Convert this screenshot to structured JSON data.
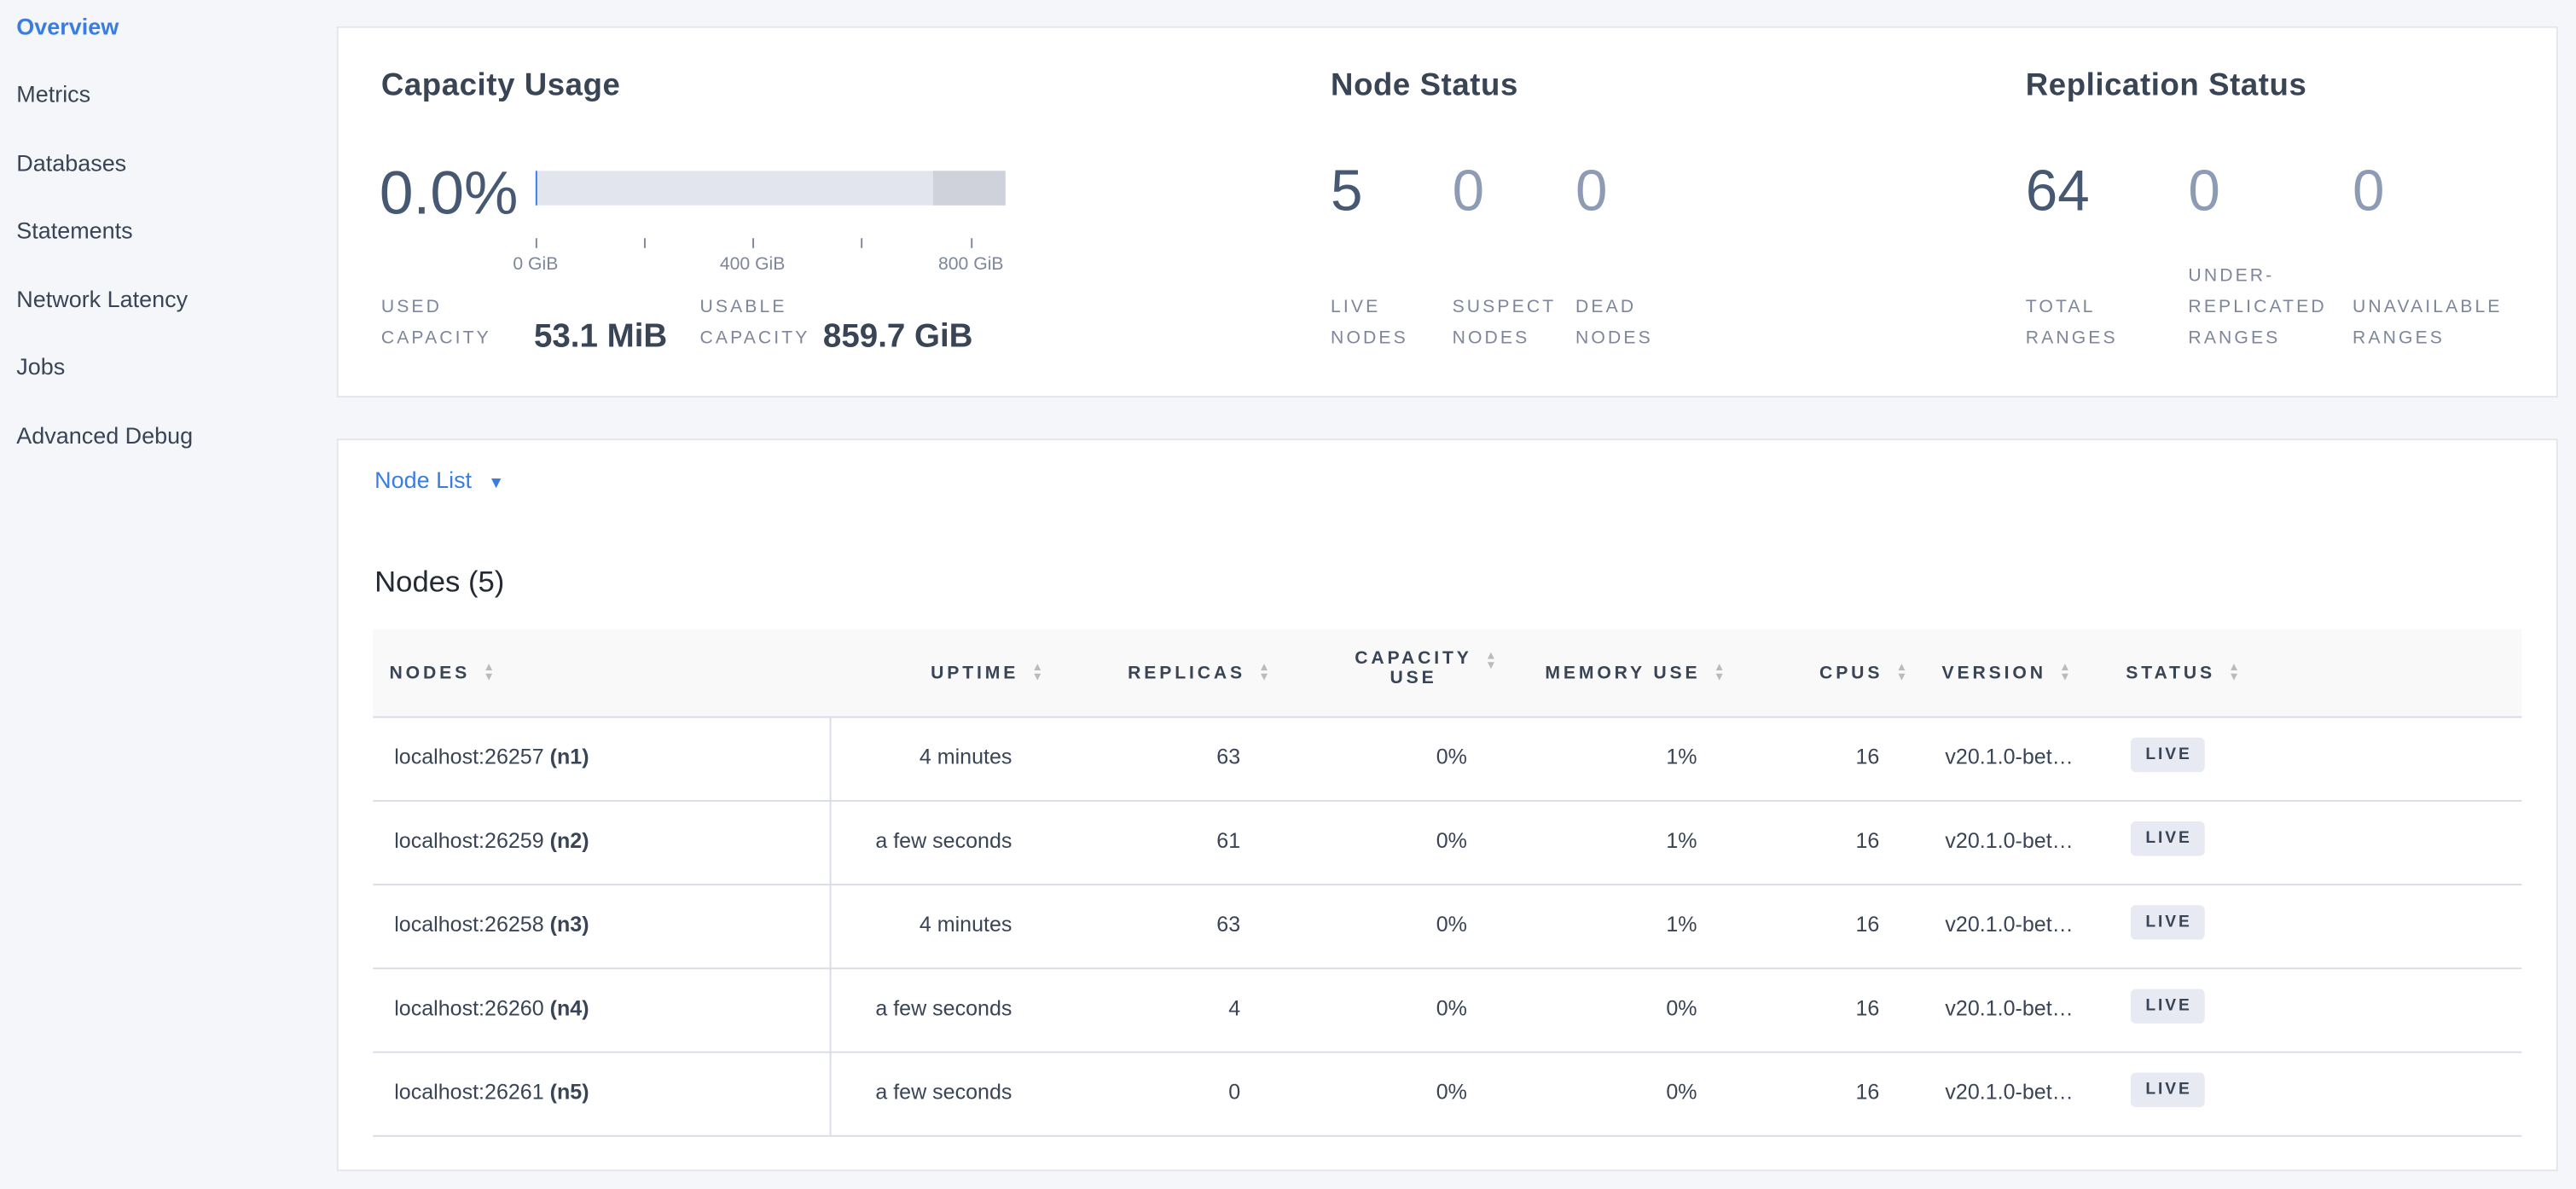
{
  "sidebar": {
    "items": [
      {
        "label": "Overview",
        "active": true
      },
      {
        "label": "Metrics"
      },
      {
        "label": "Databases"
      },
      {
        "label": "Statements"
      },
      {
        "label": "Network Latency"
      },
      {
        "label": "Jobs"
      },
      {
        "label": "Advanced Debug"
      }
    ]
  },
  "capacity": {
    "title": "Capacity Usage",
    "percent": "0.0%",
    "used_fraction": 0.0,
    "axis": {
      "ticks": [
        "0 GiB",
        "400 GiB",
        "800 GiB"
      ]
    },
    "used_label_1": "USED",
    "used_label_2": "CAPACITY",
    "used_value": "53.1 MiB",
    "usable_label_1": "USABLE",
    "usable_label_2": "CAPACITY",
    "usable_value": "859.7 GiB"
  },
  "node_status": {
    "title": "Node Status",
    "live": "5",
    "live_l1": "LIVE",
    "live_l2": "NODES",
    "suspect": "0",
    "suspect_l1": "SUSPECT",
    "suspect_l2": "NODES",
    "dead": "0",
    "dead_l1": "DEAD",
    "dead_l2": "NODES"
  },
  "replication": {
    "title": "Replication Status",
    "total": "64",
    "total_l1": "TOTAL",
    "total_l2": "RANGES",
    "under": "0",
    "under_l1": "UNDER-",
    "under_l2": "REPLICATED",
    "under_l3": "RANGES",
    "unavail": "0",
    "unavail_l1": "UNAVAILABLE",
    "unavail_l2": "RANGES"
  },
  "node_list": {
    "dropdown_label": "Node List",
    "dropdown_icon": "caret-down-icon"
  },
  "nodes": {
    "title": "Nodes (5)",
    "headers": [
      "NODES",
      "UPTIME",
      "REPLICAS",
      "CAPACITY",
      "USE",
      "MEMORY USE",
      "CPUS",
      "VERSION",
      "STATUS"
    ],
    "rows": [
      {
        "address": "localhost:26257",
        "id": "(n1)",
        "uptime": "4 minutes",
        "replicas": "63",
        "capacity": "0%",
        "memory": "1%",
        "cpus": "16",
        "version": "v20.1.0-bet…",
        "status": "LIVE"
      },
      {
        "address": "localhost:26259",
        "id": "(n2)",
        "uptime": "a few seconds",
        "replicas": "61",
        "capacity": "0%",
        "memory": "1%",
        "cpus": "16",
        "version": "v20.1.0-bet…",
        "status": "LIVE"
      },
      {
        "address": "localhost:26258",
        "id": "(n3)",
        "uptime": "4 minutes",
        "replicas": "63",
        "capacity": "0%",
        "memory": "1%",
        "cpus": "16",
        "version": "v20.1.0-bet…",
        "status": "LIVE"
      },
      {
        "address": "localhost:26260",
        "id": "(n4)",
        "uptime": "a few seconds",
        "replicas": "4",
        "capacity": "0%",
        "memory": "0%",
        "cpus": "16",
        "version": "v20.1.0-bet…",
        "status": "LIVE"
      },
      {
        "address": "localhost:26261",
        "id": "(n5)",
        "uptime": "a few seconds",
        "replicas": "0",
        "capacity": "0%",
        "memory": "0%",
        "cpus": "16",
        "version": "v20.1.0-bet…",
        "status": "LIVE"
      }
    ]
  },
  "colors": {
    "accent": "#3a7de1",
    "background": "#f5f6fa",
    "badge": "#e7eaf3"
  }
}
